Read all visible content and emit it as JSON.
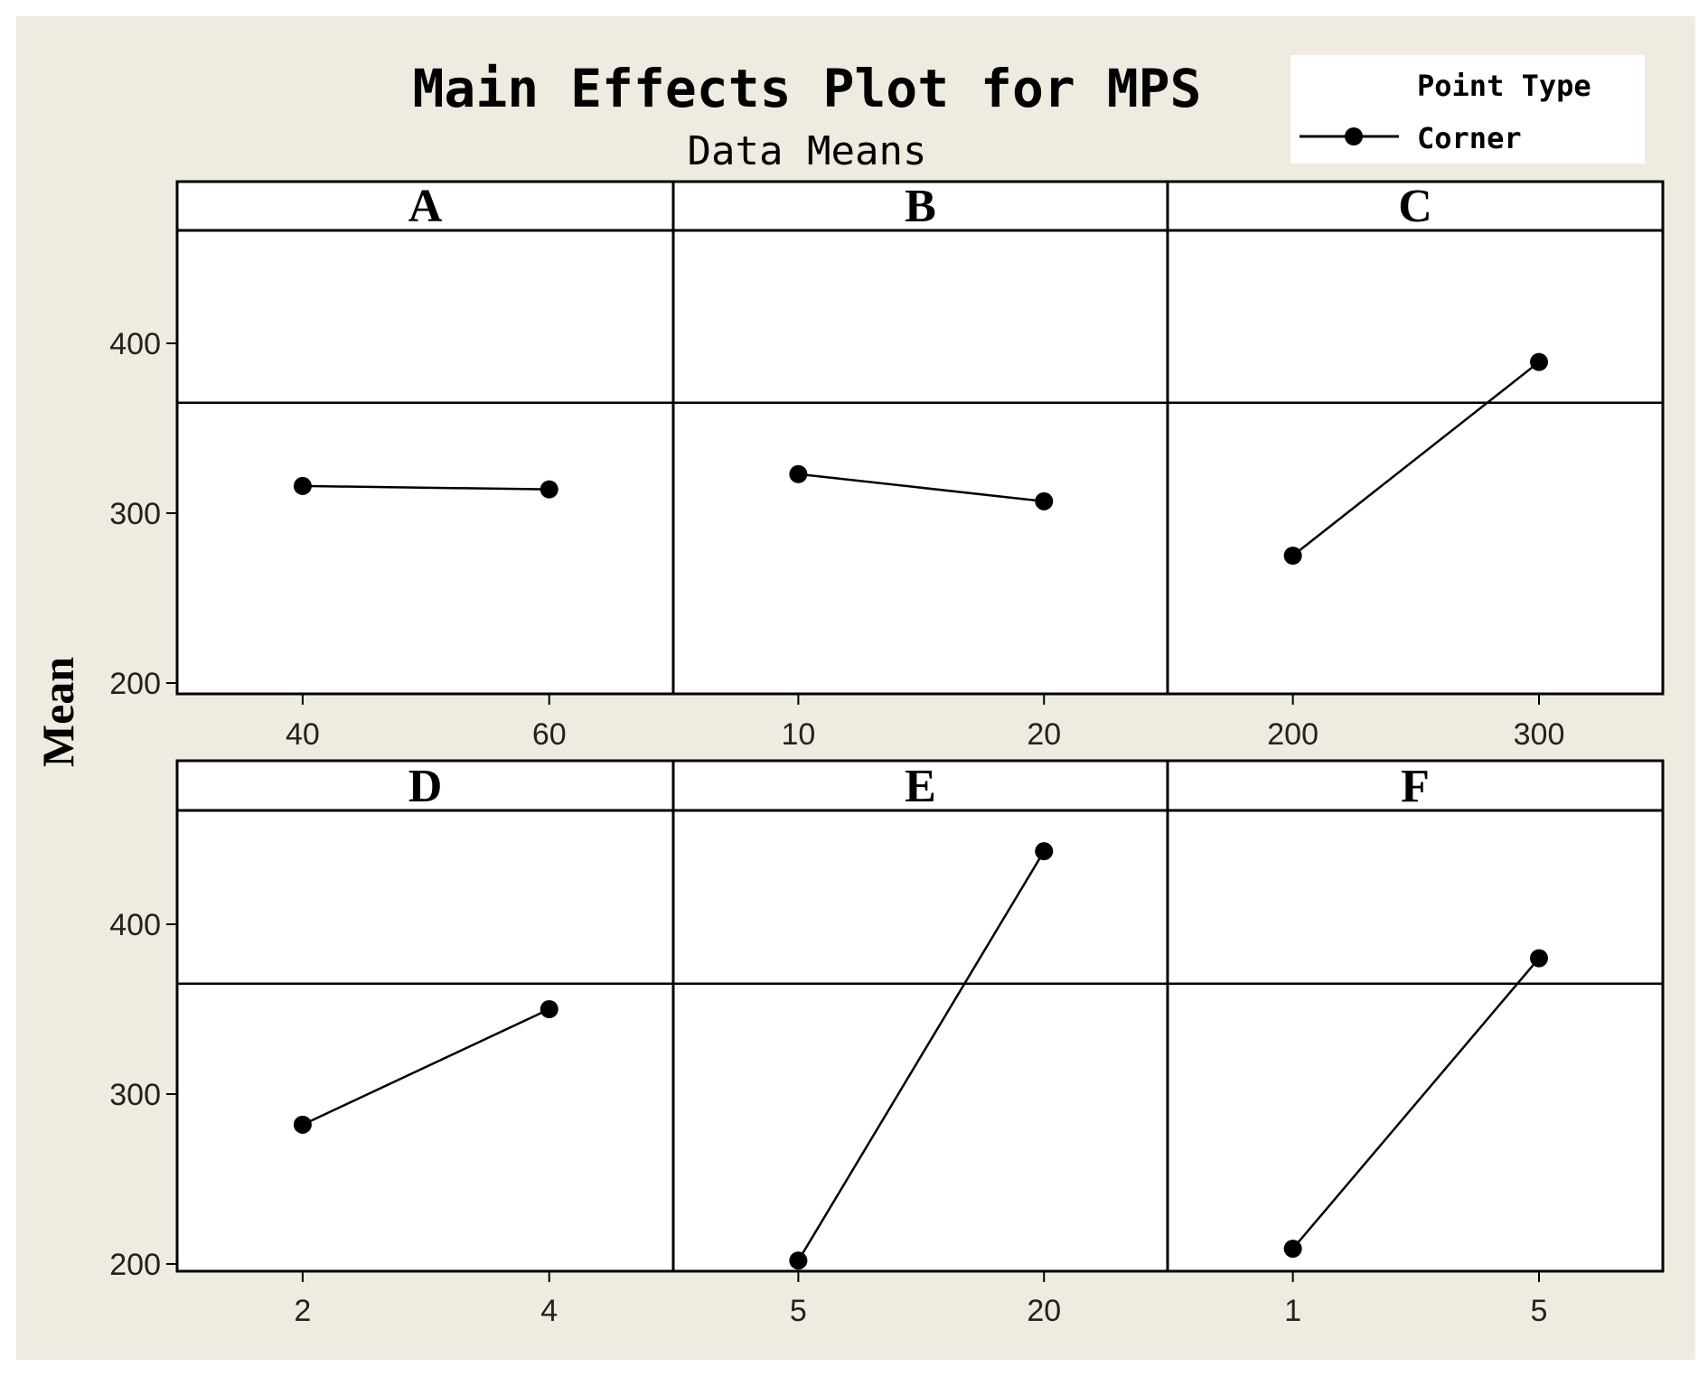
{
  "chart_data": {
    "type": "line",
    "title": "Main Effects Plot for MPS",
    "subtitle": "Data Means",
    "ylabel": "Mean",
    "ylim": [
      190,
      460
    ],
    "yticks": [
      200,
      300,
      400
    ],
    "reference_line": 365,
    "legend": {
      "title": "Point Type",
      "entries": [
        "Corner"
      ],
      "placement": "top-right"
    },
    "panels": [
      {
        "name": "A",
        "x": [
          "40",
          "60"
        ],
        "y": [
          316,
          314
        ]
      },
      {
        "name": "B",
        "x": [
          "10",
          "20"
        ],
        "y": [
          323,
          307
        ]
      },
      {
        "name": "C",
        "x": [
          "200",
          "300"
        ],
        "y": [
          275,
          389
        ]
      },
      {
        "name": "D",
        "x": [
          "2",
          "4"
        ],
        "y": [
          282,
          350
        ]
      },
      {
        "name": "E",
        "x": [
          "5",
          "20"
        ],
        "y": [
          202,
          443
        ]
      },
      {
        "name": "F",
        "x": [
          "1",
          "5"
        ],
        "y": [
          209,
          380
        ]
      }
    ]
  },
  "colors": {
    "frame_background": "#efebe1",
    "plot_background": "#ffffff",
    "line": "#000000"
  }
}
